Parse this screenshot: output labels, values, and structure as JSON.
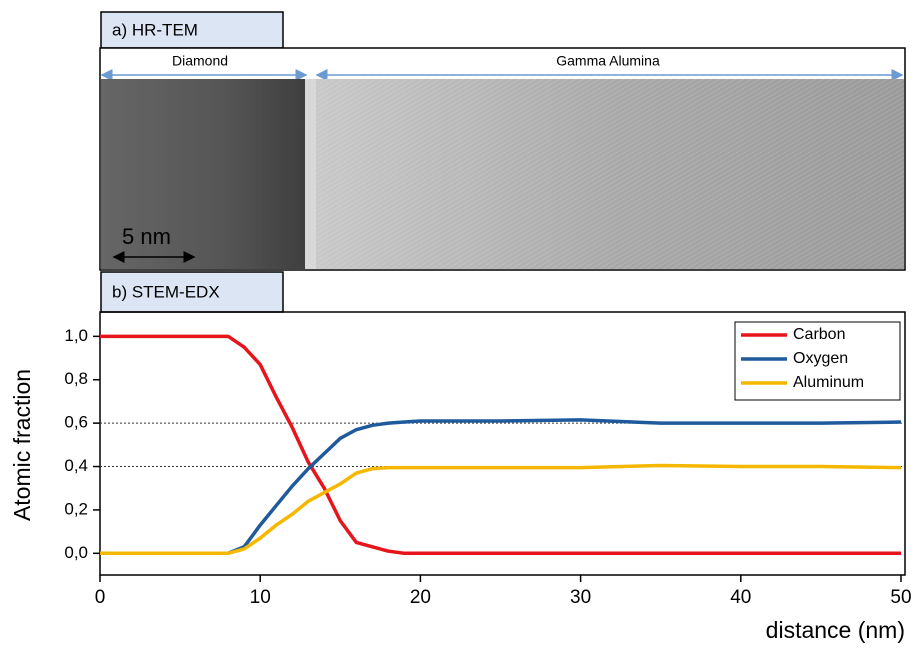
{
  "image_panel": {
    "label": "a) HR-TEM",
    "regions": [
      "Diamond",
      "Gamma Alumina"
    ],
    "scale_bar": "5 nm"
  },
  "chart_data": {
    "type": "line",
    "panel_label": "b) STEM-EDX",
    "x_label": "distance (nm)",
    "y_label": "Atomic fraction",
    "x": [
      0,
      8,
      9,
      10,
      11,
      12,
      13,
      14,
      15,
      16,
      17,
      18,
      19,
      20,
      25,
      30,
      35,
      40,
      45,
      50
    ],
    "series": [
      {
        "name": "Carbon",
        "color": "#e8141b",
        "values": [
          1,
          1,
          0.95,
          0.87,
          0.72,
          0.58,
          0.42,
          0.3,
          0.15,
          0.05,
          0.03,
          0.01,
          0,
          0,
          0,
          0,
          0,
          0,
          0,
          0
        ]
      },
      {
        "name": "Oxygen",
        "color": "#1f5a9c",
        "values": [
          0,
          0,
          0.03,
          0.13,
          0.22,
          0.31,
          0.39,
          0.46,
          0.53,
          0.57,
          0.59,
          0.6,
          0.605,
          0.61,
          0.61,
          0.615,
          0.6,
          0.6,
          0.6,
          0.605
        ]
      },
      {
        "name": "Aluminum",
        "color": "#f5b800",
        "values": [
          0,
          0,
          0.02,
          0.07,
          0.13,
          0.18,
          0.24,
          0.28,
          0.32,
          0.37,
          0.39,
          0.395,
          0.395,
          0.395,
          0.395,
          0.395,
          0.405,
          0.4,
          0.4,
          0.395
        ]
      }
    ],
    "xlim": [
      0,
      50
    ],
    "xticks": [
      0,
      10,
      20,
      30,
      40,
      50
    ],
    "ylim": [
      -0.1,
      1.08
    ],
    "yticks": [
      {
        "value": 0,
        "label": "0,0"
      },
      {
        "value": 0.2,
        "label": "0,2"
      },
      {
        "value": 0.4,
        "label": "0,4"
      },
      {
        "value": 0.6,
        "label": "0,6"
      },
      {
        "value": 0.8,
        "label": "0,8"
      },
      {
        "value": 1,
        "label": "1,0"
      }
    ],
    "hlines": [
      0.6,
      0.4
    ],
    "legend": "top-right"
  }
}
